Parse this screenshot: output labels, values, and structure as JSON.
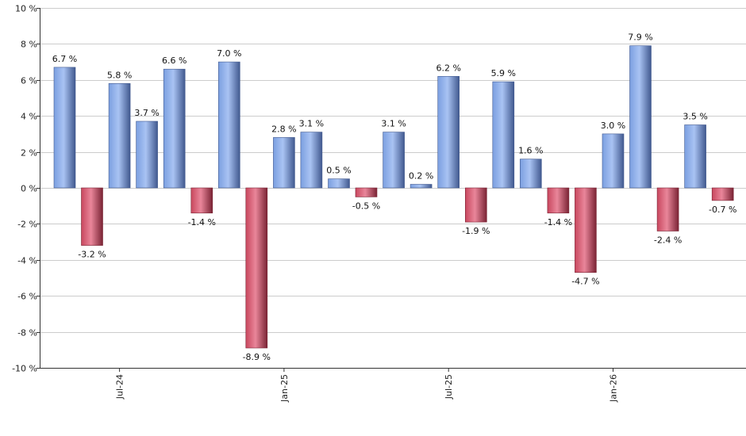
{
  "chart_data": {
    "type": "bar",
    "title": "",
    "xlabel": "",
    "ylabel": "",
    "unit": " %",
    "ylim": [
      -10,
      10
    ],
    "y_ticks": [
      -10,
      -8,
      -6,
      -4,
      -2,
      0,
      2,
      4,
      6,
      8,
      10
    ],
    "y_tick_labels": [
      "-10 %",
      "-8 %",
      "-6 %",
      "-4 %",
      "-2 %",
      "0 %",
      "2 %",
      "4 %",
      "6 %",
      "8 %",
      "10 %"
    ],
    "x_tick_labels": [
      {
        "label": "Jul-24",
        "category_index": 2
      },
      {
        "label": "Jan-25",
        "category_index": 8
      },
      {
        "label": "Jul-25",
        "category_index": 14
      },
      {
        "label": "Jan-26",
        "category_index": 20
      }
    ],
    "values": [
      6.7,
      -3.2,
      5.8,
      3.7,
      6.6,
      -1.4,
      7.0,
      -8.9,
      2.8,
      3.1,
      0.5,
      -0.5,
      3.1,
      0.2,
      6.2,
      -1.9,
      5.9,
      1.6,
      -1.4,
      -4.7,
      3.0,
      7.9,
      -2.4,
      3.5,
      -0.7
    ],
    "data_labels": [
      "6.7 %",
      "-3.2 %",
      "5.8 %",
      "3.7 %",
      "6.6 %",
      "-1.4 %",
      "7.0 %",
      "-8.9 %",
      "2.8 %",
      "3.1 %",
      "0.5 %",
      "-0.5 %",
      "3.1 %",
      "0.2 %",
      "6.2 %",
      "-1.9 %",
      "5.9 %",
      "1.6 %",
      "-1.4 %",
      "-4.7 %",
      "3.0 %",
      "7.9 %",
      "-2.4 %",
      "3.5 %",
      "-0.7 %"
    ],
    "grid": true,
    "colors": {
      "positive": "#7b9fe0",
      "positive_light": "#a9c3f3",
      "positive_dark": "#41598f",
      "negative": "#c8475e",
      "negative_light": "#e9869a",
      "negative_dark": "#7a2334",
      "gridline": "#cccccc",
      "axis": "#333333"
    }
  }
}
